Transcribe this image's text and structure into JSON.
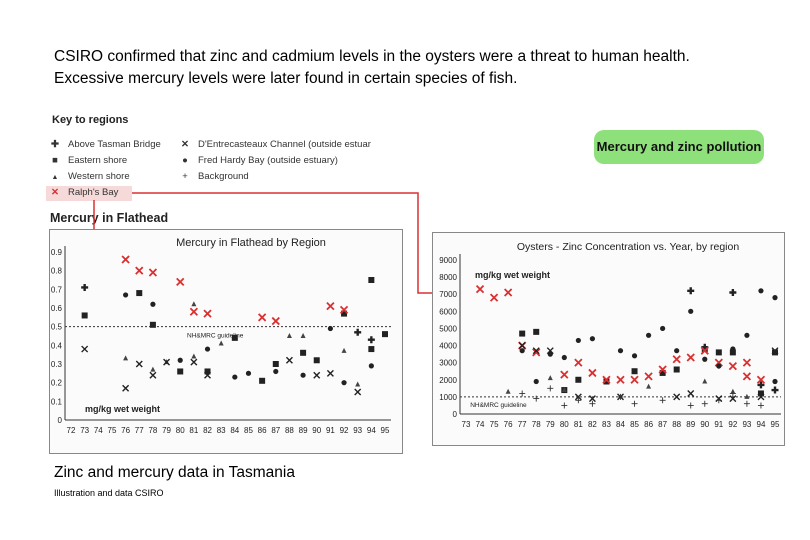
{
  "intro_text": "CSIRO confirmed that zinc and cadmium levels in the oysters were a threat to human health. Excessive mercury levels were later found in certain species of fish.",
  "key": {
    "title": "Key to regions",
    "items": [
      {
        "symbol": "✚",
        "label": "Above Tasman Bridge"
      },
      {
        "symbol": "■",
        "label": "Eastern shore"
      },
      {
        "symbol": "▲",
        "label": "Western shore"
      },
      {
        "symbol": "✕",
        "label": "Ralph's Bay"
      },
      {
        "symbol": "✕",
        "label": "D'Entrecasteaux Channel (outside estuar"
      },
      {
        "symbol": "●",
        "label": "Fred Hardy Bay (outside estuary)"
      },
      {
        "symbol": "+",
        "label": "Background"
      }
    ],
    "colors": {
      "ralphs_bay": "#d93030",
      "dark": "#222222",
      "highlight": "#f6d9d9"
    }
  },
  "pollution_label": "Mercury and zinc pollution",
  "panel_title": "Mercury in Flathead",
  "caption": "Zinc and mercury data in Tasmania",
  "credit": "Illustration and data CSIRO",
  "chart_data": [
    {
      "type": "scatter",
      "title": "Mercury in Flathead by Region",
      "ylabel": "mg/kg wet weight",
      "ylim": [
        0,
        0.9
      ],
      "yticks": [
        "0",
        "0.1",
        "0.2",
        "0.3",
        "0.4",
        "0.5",
        "0.6",
        "0.7",
        "0.8",
        "0.9"
      ],
      "x_tick_labels": [
        "72",
        "73",
        "74",
        "75",
        "76",
        "77",
        "78",
        "79",
        "80",
        "81",
        "82",
        "83",
        "84",
        "85",
        "86",
        "87",
        "88",
        "89",
        "90",
        "91",
        "92",
        "93",
        "94",
        "95"
      ],
      "guideline": {
        "label": "NH&MRC guideline",
        "value": 0.5
      },
      "series": [
        {
          "marker": "plus",
          "points": [
            [
              73,
              0.71
            ],
            [
              93,
              0.47
            ],
            [
              94,
              0.43
            ]
          ]
        },
        {
          "marker": "square",
          "points": [
            [
              73,
              0.56
            ],
            [
              77,
              0.68
            ],
            [
              78,
              0.51
            ],
            [
              80,
              0.26
            ],
            [
              82,
              0.26
            ],
            [
              84,
              0.44
            ],
            [
              86,
              0.21
            ],
            [
              87,
              0.3
            ],
            [
              89,
              0.36
            ],
            [
              90,
              0.32
            ],
            [
              92,
              0.57
            ],
            [
              94,
              0.75
            ],
            [
              94,
              0.38
            ],
            [
              95,
              0.46
            ]
          ]
        },
        {
          "marker": "triangle",
          "points": [
            [
              76,
              0.33
            ],
            [
              78,
              0.27
            ],
            [
              79,
              0.31
            ],
            [
              81,
              0.62
            ],
            [
              81,
              0.34
            ],
            [
              83,
              0.41
            ],
            [
              88,
              0.45
            ],
            [
              89,
              0.45
            ],
            [
              92,
              0.37
            ],
            [
              93,
              0.19
            ]
          ]
        },
        {
          "marker": "xred",
          "points": [
            [
              76,
              0.86
            ],
            [
              77,
              0.8
            ],
            [
              78,
              0.79
            ],
            [
              80,
              0.74
            ],
            [
              81,
              0.58
            ],
            [
              82,
              0.57
            ],
            [
              86,
              0.55
            ],
            [
              87,
              0.53
            ],
            [
              91,
              0.61
            ],
            [
              92,
              0.59
            ]
          ]
        },
        {
          "marker": "xdark",
          "points": [
            [
              73,
              0.38
            ],
            [
              76,
              0.17
            ],
            [
              77,
              0.3
            ],
            [
              78,
              0.24
            ],
            [
              79,
              0.31
            ],
            [
              81,
              0.31
            ],
            [
              82,
              0.24
            ],
            [
              88,
              0.32
            ],
            [
              90,
              0.24
            ],
            [
              91,
              0.25
            ],
            [
              93,
              0.15
            ]
          ]
        },
        {
          "marker": "circle",
          "points": [
            [
              76,
              0.67
            ],
            [
              78,
              0.62
            ],
            [
              80,
              0.32
            ],
            [
              82,
              0.38
            ],
            [
              84,
              0.23
            ],
            [
              85,
              0.25
            ],
            [
              87,
              0.26
            ],
            [
              89,
              0.24
            ],
            [
              91,
              0.49
            ],
            [
              92,
              0.2
            ],
            [
              94,
              0.29
            ]
          ]
        }
      ]
    },
    {
      "type": "scatter",
      "title": "Oysters - Zinc Concentration vs. Year, by region",
      "ylabel": "mg/kg wet weight",
      "ylim": [
        0,
        9000
      ],
      "yticks": [
        "0",
        "1000",
        "2000",
        "3000",
        "4000",
        "5000",
        "6000",
        "7000",
        "8000",
        "9000"
      ],
      "x_tick_labels": [
        "73",
        "74",
        "75",
        "76",
        "77",
        "78",
        "79",
        "80",
        "81",
        "82",
        "83",
        "84",
        "85",
        "86",
        "87",
        "88",
        "89",
        "90",
        "91",
        "92",
        "93",
        "94",
        "95"
      ],
      "guideline": {
        "label": "NH&MRC guideline",
        "value": 1000
      },
      "series": [
        {
          "marker": "plus",
          "points": [
            [
              89,
              7200
            ],
            [
              90,
              3900
            ],
            [
              92,
              7100
            ],
            [
              94,
              1700
            ],
            [
              95,
              1400
            ]
          ]
        },
        {
          "marker": "square",
          "points": [
            [
              77,
              4700
            ],
            [
              78,
              4800
            ],
            [
              80,
              1400
            ],
            [
              81,
              2000
            ],
            [
              83,
              1900
            ],
            [
              85,
              2500
            ],
            [
              87,
              2400
            ],
            [
              88,
              2600
            ],
            [
              90,
              3800
            ],
            [
              91,
              3600
            ],
            [
              92,
              3600
            ],
            [
              94,
              1200
            ],
            [
              95,
              3600
            ]
          ]
        },
        {
          "marker": "triangle",
          "points": [
            [
              76,
              1300
            ],
            [
              79,
              2100
            ],
            [
              80,
              1400
            ],
            [
              86,
              1600
            ],
            [
              90,
              1900
            ],
            [
              92,
              1300
            ],
            [
              93,
              1000
            ]
          ]
        },
        {
          "marker": "xred",
          "points": [
            [
              74,
              7300
            ],
            [
              75,
              6800
            ],
            [
              76,
              7100
            ],
            [
              77,
              4000
            ],
            [
              78,
              3600
            ],
            [
              80,
              2300
            ],
            [
              81,
              3000
            ],
            [
              82,
              2400
            ],
            [
              83,
              2000
            ],
            [
              84,
              2000
            ],
            [
              85,
              2000
            ],
            [
              86,
              2200
            ],
            [
              87,
              2600
            ],
            [
              88,
              3200
            ],
            [
              89,
              3300
            ],
            [
              90,
              3700
            ],
            [
              91,
              3000
            ],
            [
              92,
              2800
            ],
            [
              93,
              3000
            ],
            [
              93,
              2200
            ],
            [
              94,
              2000
            ]
          ]
        },
        {
          "marker": "xdark",
          "points": [
            [
              77,
              4000
            ],
            [
              78,
              3700
            ],
            [
              79,
              3700
            ],
            [
              81,
              1000
            ],
            [
              82,
              900
            ],
            [
              84,
              1000
            ],
            [
              88,
              1000
            ],
            [
              89,
              1200
            ],
            [
              91,
              900
            ],
            [
              92,
              900
            ],
            [
              94,
              1000
            ],
            [
              95,
              3700
            ]
          ]
        },
        {
          "marker": "circle",
          "points": [
            [
              77,
              3700
            ],
            [
              78,
              1900
            ],
            [
              79,
              3500
            ],
            [
              80,
              3300
            ],
            [
              81,
              4300
            ],
            [
              82,
              4400
            ],
            [
              84,
              3700
            ],
            [
              85,
              3400
            ],
            [
              86,
              4600
            ],
            [
              87,
              5000
            ],
            [
              88,
              3700
            ],
            [
              89,
              6000
            ],
            [
              90,
              3200
            ],
            [
              91,
              2800
            ],
            [
              92,
              3800
            ],
            [
              93,
              4600
            ],
            [
              94,
              7200
            ],
            [
              95,
              6800
            ],
            [
              95,
              1900
            ]
          ]
        },
        {
          "marker": "smallplus",
          "points": [
            [
              77,
              1200
            ],
            [
              78,
              900
            ],
            [
              79,
              1500
            ],
            [
              80,
              500
            ],
            [
              81,
              800
            ],
            [
              82,
              600
            ],
            [
              84,
              1000
            ],
            [
              85,
              600
            ],
            [
              87,
              800
            ],
            [
              89,
              500
            ],
            [
              90,
              600
            ],
            [
              91,
              800
            ],
            [
              92,
              1200
            ],
            [
              93,
              600
            ],
            [
              94,
              500
            ]
          ]
        }
      ]
    }
  ]
}
